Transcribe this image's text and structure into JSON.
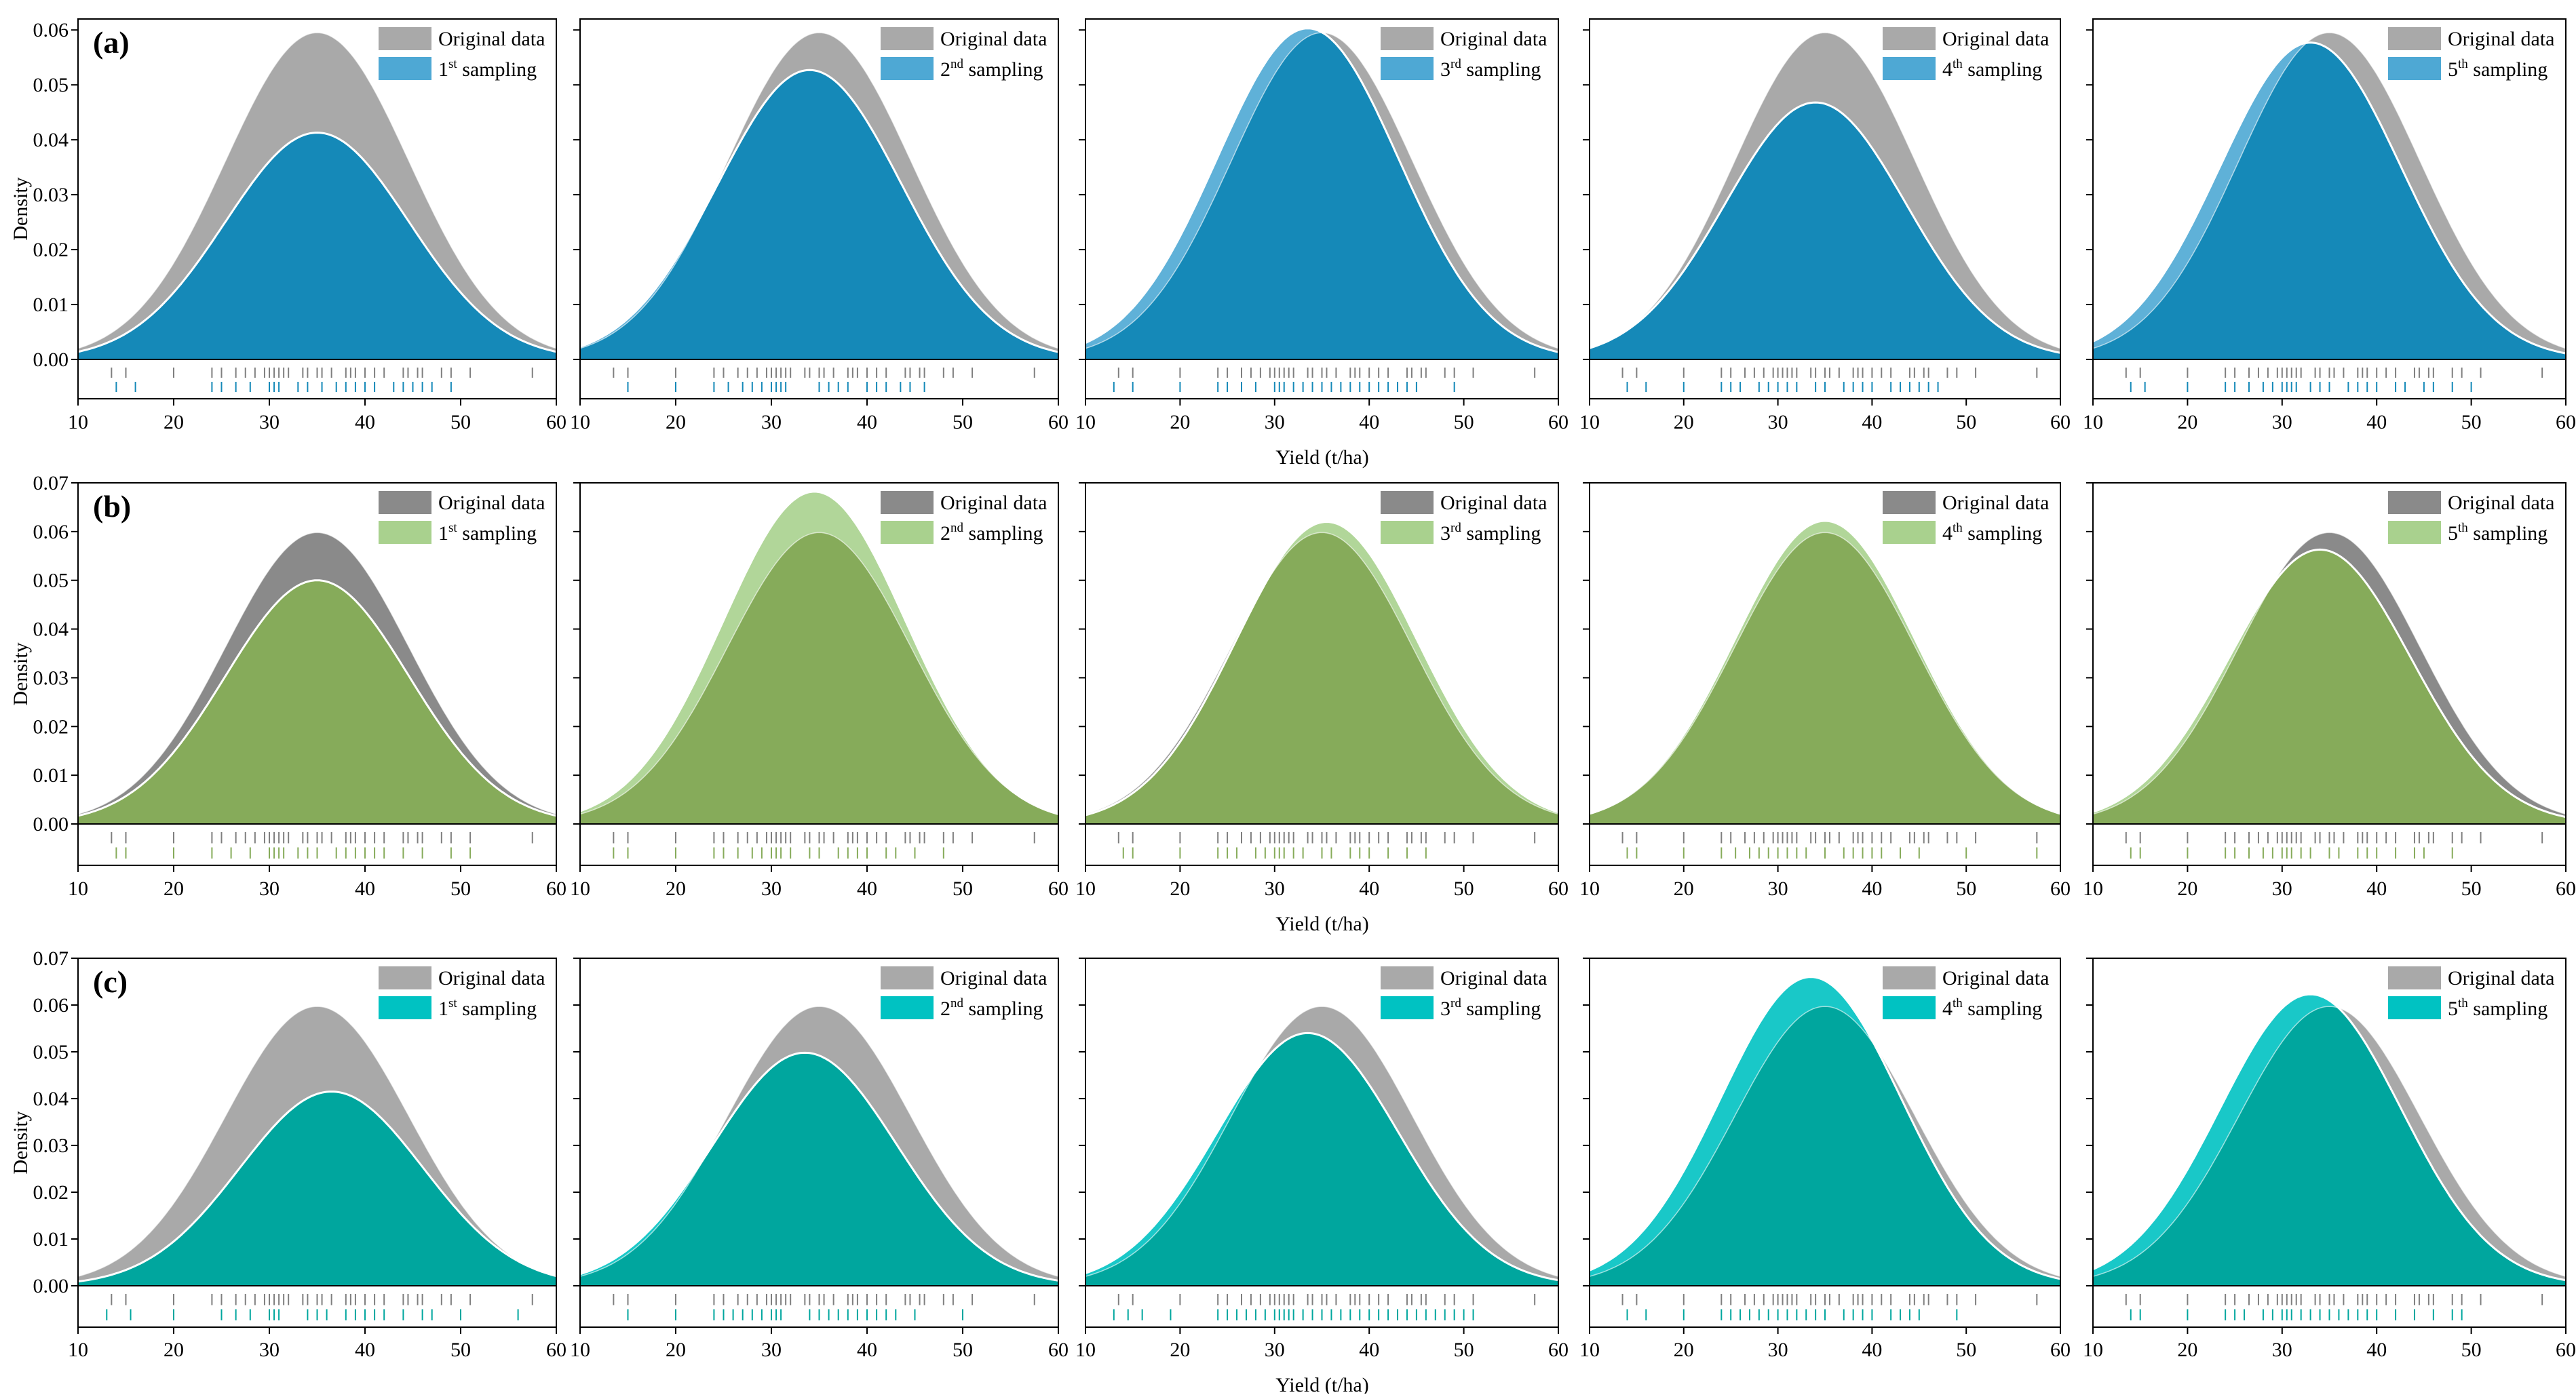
{
  "figure": {
    "x_axis_label": "Yield (t/ha)",
    "y_axis_label": "Density"
  },
  "chart_data": [
    {
      "panel": "(a)",
      "type": "area",
      "ylim": [
        -0.009,
        0.062
      ],
      "yticks": [
        0.0,
        0.01,
        0.02,
        0.03,
        0.04,
        0.05,
        0.06
      ],
      "ytick_labels": [
        "0.00",
        "0.01",
        "0.02",
        "0.03",
        "0.04",
        "0.05",
        "0.06"
      ],
      "xlim": [
        10,
        60
      ],
      "xticks": [
        10,
        20,
        30,
        40,
        50,
        60
      ],
      "xlabel": "Yield (t/ha)",
      "ylabel": "Density",
      "legend_location": "top-right",
      "original_color": "#a9a9a9",
      "sample_color": "#1589b8",
      "sample_edge_color": "#4ea8d4",
      "original": {
        "name": "Original data",
        "peak_x": 35,
        "peak_density": 0.0595
      },
      "original_rug": [
        13.5,
        15,
        20,
        24,
        25,
        26.5,
        27.5,
        28.5,
        29.5,
        30,
        30.5,
        31,
        31.5,
        32,
        33.5,
        34,
        35,
        35.5,
        36.5,
        38,
        38.5,
        39,
        40,
        41,
        42,
        44,
        44.5,
        45.5,
        46,
        48,
        49,
        51,
        57.5
      ],
      "samplings": [
        {
          "name": "1st sampling",
          "ordinal": "1",
          "suffix": "st",
          "peak_x": 35,
          "peak_density": 0.0413,
          "rug": [
            14,
            16,
            24,
            25,
            26.5,
            28,
            30,
            30.5,
            31,
            33,
            34,
            35.5,
            37,
            38,
            39,
            40,
            41,
            43,
            44,
            45,
            46,
            47,
            49
          ]
        },
        {
          "name": "2nd sampling",
          "ordinal": "2",
          "suffix": "nd",
          "peak_x": 34,
          "peak_density": 0.0527,
          "rug": [
            15,
            20,
            24,
            25.5,
            27,
            28,
            29,
            30,
            30.5,
            31,
            31.5,
            35,
            36,
            37,
            38,
            40,
            41,
            42,
            43.5,
            44.5,
            46
          ]
        },
        {
          "name": "3rd sampling",
          "ordinal": "3",
          "suffix": "rd",
          "peak_x": 33.5,
          "peak_density": 0.0603,
          "rug": [
            13,
            15,
            20,
            24,
            25,
            26.5,
            28,
            30,
            30.5,
            31,
            32,
            33,
            34,
            35,
            36,
            37,
            38,
            39,
            40,
            41,
            42,
            43,
            44,
            45,
            49
          ]
        },
        {
          "name": "4th sampling",
          "ordinal": "4",
          "suffix": "th",
          "peak_x": 34,
          "peak_density": 0.0468,
          "rug": [
            14,
            16,
            20,
            24,
            25,
            26,
            28,
            29,
            30,
            31,
            32,
            34,
            35,
            37,
            38,
            39,
            40,
            42,
            43,
            44,
            45,
            46,
            47
          ]
        },
        {
          "name": "5th sampling",
          "ordinal": "5",
          "suffix": "th",
          "peak_x": 33,
          "peak_density": 0.0577,
          "rug": [
            14,
            15.5,
            20,
            24,
            25,
            26.5,
            28,
            29,
            30,
            30.5,
            31,
            31.5,
            33,
            34,
            35,
            37,
            38,
            39,
            40,
            42,
            43,
            45,
            46,
            48,
            50
          ]
        }
      ]
    },
    {
      "panel": "(b)",
      "type": "area",
      "ylim": [
        -0.009,
        0.07
      ],
      "yticks": [
        0.0,
        0.01,
        0.02,
        0.03,
        0.04,
        0.05,
        0.06,
        0.07
      ],
      "ytick_labels": [
        "0.00",
        "0.01",
        "0.02",
        "0.03",
        "0.04",
        "0.05",
        "0.06",
        "0.07"
      ],
      "xlim": [
        10,
        60
      ],
      "xticks": [
        10,
        20,
        30,
        40,
        50,
        60
      ],
      "xlabel": "Yield (t/ha)",
      "ylabel": "Density",
      "legend_location": "top-right",
      "original_color": "#8a8a8a",
      "sample_color": "#86ab5a",
      "sample_edge_color": "#a9d18e",
      "original": {
        "name": "Original data",
        "peak_x": 35,
        "peak_density": 0.0598
      },
      "original_rug": [
        13.5,
        15,
        20,
        24,
        25,
        26.5,
        27.5,
        28.5,
        29.5,
        30,
        30.5,
        31,
        31.5,
        32,
        33.5,
        34,
        35,
        35.5,
        36.5,
        38,
        38.5,
        39,
        40,
        41,
        42,
        44,
        44.5,
        45.5,
        46,
        48,
        49,
        51,
        57.5
      ],
      "samplings": [
        {
          "name": "1st sampling",
          "ordinal": "1",
          "suffix": "st",
          "peak_x": 35,
          "peak_density": 0.05,
          "rug": [
            14,
            15,
            20,
            24,
            26,
            28,
            30,
            30.5,
            31,
            31.5,
            33,
            34,
            35,
            37,
            38,
            39,
            40,
            41,
            42,
            44,
            46,
            49,
            51
          ]
        },
        {
          "name": "2nd sampling",
          "ordinal": "2",
          "suffix": "nd",
          "peak_x": 34.5,
          "peak_density": 0.0682,
          "rug": [
            13.5,
            15,
            20,
            24,
            25,
            26.5,
            28,
            29,
            30,
            30.5,
            31,
            32,
            34,
            35,
            37,
            38,
            39,
            40,
            42,
            43,
            45,
            48
          ]
        },
        {
          "name": "3rd sampling",
          "ordinal": "3",
          "suffix": "rd",
          "peak_x": 35.5,
          "peak_density": 0.062,
          "rug": [
            14,
            15,
            20,
            24,
            25,
            26,
            28,
            29,
            30,
            30.5,
            31,
            32,
            33,
            35,
            36,
            38,
            39,
            40,
            42,
            44,
            46
          ]
        },
        {
          "name": "4th sampling",
          "ordinal": "4",
          "suffix": "th",
          "peak_x": 35,
          "peak_density": 0.0622,
          "rug": [
            14,
            15,
            20,
            24,
            25.5,
            27,
            28,
            29,
            30,
            31,
            32,
            33,
            35,
            37,
            38,
            39,
            40,
            41,
            43,
            45,
            50,
            57.5
          ]
        },
        {
          "name": "5th sampling",
          "ordinal": "5",
          "suffix": "th",
          "peak_x": 34,
          "peak_density": 0.0563,
          "rug": [
            14,
            15,
            20,
            24,
            25,
            26.5,
            28,
            29,
            30,
            30.5,
            31,
            32,
            33,
            35,
            36,
            38,
            39,
            40,
            42,
            44,
            45,
            48
          ]
        }
      ]
    },
    {
      "panel": "(c)",
      "type": "area",
      "ylim": [
        -0.009,
        0.07
      ],
      "yticks": [
        0.0,
        0.01,
        0.02,
        0.03,
        0.04,
        0.05,
        0.06,
        0.07
      ],
      "ytick_labels": [
        "0.00",
        "0.01",
        "0.02",
        "0.03",
        "0.04",
        "0.05",
        "0.06",
        "0.07"
      ],
      "xlim": [
        10,
        60
      ],
      "xticks": [
        10,
        20,
        30,
        40,
        50,
        60
      ],
      "xlabel": "Yield (t/ha)",
      "ylabel": "Density",
      "legend_location": "top-right",
      "original_color": "#a9a9a9",
      "sample_color": "#00a69e",
      "sample_edge_color": "#00c2c2",
      "original": {
        "name": "Original data",
        "peak_x": 35,
        "peak_density": 0.0597
      },
      "original_rug": [
        13.5,
        15,
        20,
        24,
        25,
        26.5,
        27.5,
        28.5,
        29.5,
        30,
        30.5,
        31,
        31.5,
        32,
        33.5,
        34,
        35,
        35.5,
        36.5,
        38,
        38.5,
        39,
        40,
        41,
        42,
        44,
        44.5,
        45.5,
        46,
        48,
        49,
        51,
        57.5
      ],
      "samplings": [
        {
          "name": "1st sampling",
          "ordinal": "1",
          "suffix": "st",
          "peak_x": 36.5,
          "peak_density": 0.0415,
          "rug": [
            13,
            15.5,
            20,
            25,
            26.5,
            28,
            30,
            30.5,
            31,
            34,
            35,
            36,
            38,
            39,
            40,
            41,
            42,
            44,
            46,
            47,
            50,
            56
          ]
        },
        {
          "name": "2nd sampling",
          "ordinal": "2",
          "suffix": "nd",
          "peak_x": 33.5,
          "peak_density": 0.0498,
          "rug": [
            15,
            20,
            24,
            25,
            26,
            27,
            28,
            29,
            30,
            30.5,
            31,
            34,
            35,
            36,
            37,
            38,
            39,
            40,
            41,
            42,
            43,
            45,
            50
          ]
        },
        {
          "name": "3rd sampling",
          "ordinal": "3",
          "suffix": "rd",
          "peak_x": 33.5,
          "peak_density": 0.054,
          "rug": [
            13,
            14.5,
            16,
            19,
            24,
            25,
            26,
            27,
            28,
            29,
            30,
            30.5,
            31,
            31.5,
            32,
            33,
            34,
            35,
            36,
            37,
            38,
            39,
            40,
            41,
            42,
            43,
            44,
            45,
            46,
            47,
            48,
            49,
            50,
            51
          ]
        },
        {
          "name": "4th sampling",
          "ordinal": "4",
          "suffix": "th",
          "peak_x": 33.5,
          "peak_density": 0.066,
          "rug": [
            14,
            16,
            20,
            24,
            25,
            26,
            27,
            28,
            29,
            30,
            31,
            32,
            33,
            34,
            35,
            37,
            38,
            39,
            40,
            42,
            43,
            44,
            45,
            49
          ]
        },
        {
          "name": "5th sampling",
          "ordinal": "5",
          "suffix": "th",
          "peak_x": 33,
          "peak_density": 0.0623,
          "rug": [
            14,
            15,
            20,
            24,
            25,
            26,
            28,
            29,
            30,
            30.5,
            31,
            32,
            33,
            34,
            35,
            36,
            37,
            38,
            39,
            40,
            42,
            44,
            46,
            48,
            49
          ]
        }
      ]
    }
  ]
}
